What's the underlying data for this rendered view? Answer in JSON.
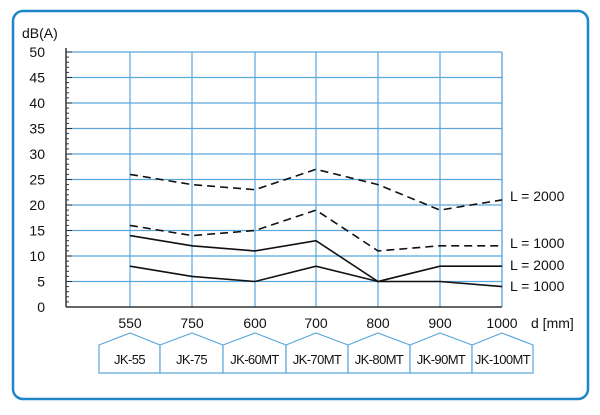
{
  "colors": {
    "frame": "#1f86c8",
    "grid": "#5aa7dc",
    "model_box": "#5aa7dc",
    "axis": "#333333",
    "line": "#111111"
  },
  "chart_data": {
    "type": "line",
    "ylabel": "dB(A)",
    "xlabel": "d [mm]",
    "ylim": [
      0,
      50
    ],
    "yticks": [
      "0",
      "5",
      "10",
      "15",
      "20",
      "25",
      "30",
      "35",
      "40",
      "45",
      "50"
    ],
    "categories": [
      "550",
      "750",
      "600",
      "700",
      "800",
      "900",
      "1000"
    ],
    "models": [
      "JK-55",
      "JK-75",
      "JK-60MT",
      "JK-70MT",
      "JK-80MT",
      "JK-90MT",
      "JK-100MT"
    ],
    "grid": true,
    "series": [
      {
        "name": "L = 2000",
        "style": "dashed",
        "values": [
          26,
          24,
          23,
          27,
          24,
          19,
          21
        ]
      },
      {
        "name": "L = 1000",
        "style": "dashed",
        "values": [
          16,
          14,
          15,
          19,
          11,
          12,
          12
        ]
      },
      {
        "name": "L = 2000",
        "style": "solid",
        "values": [
          14,
          12,
          11,
          13,
          5,
          8,
          8
        ]
      },
      {
        "name": "L = 1000",
        "style": "solid",
        "values": [
          8,
          6,
          5,
          8,
          5,
          5,
          4
        ]
      }
    ]
  }
}
